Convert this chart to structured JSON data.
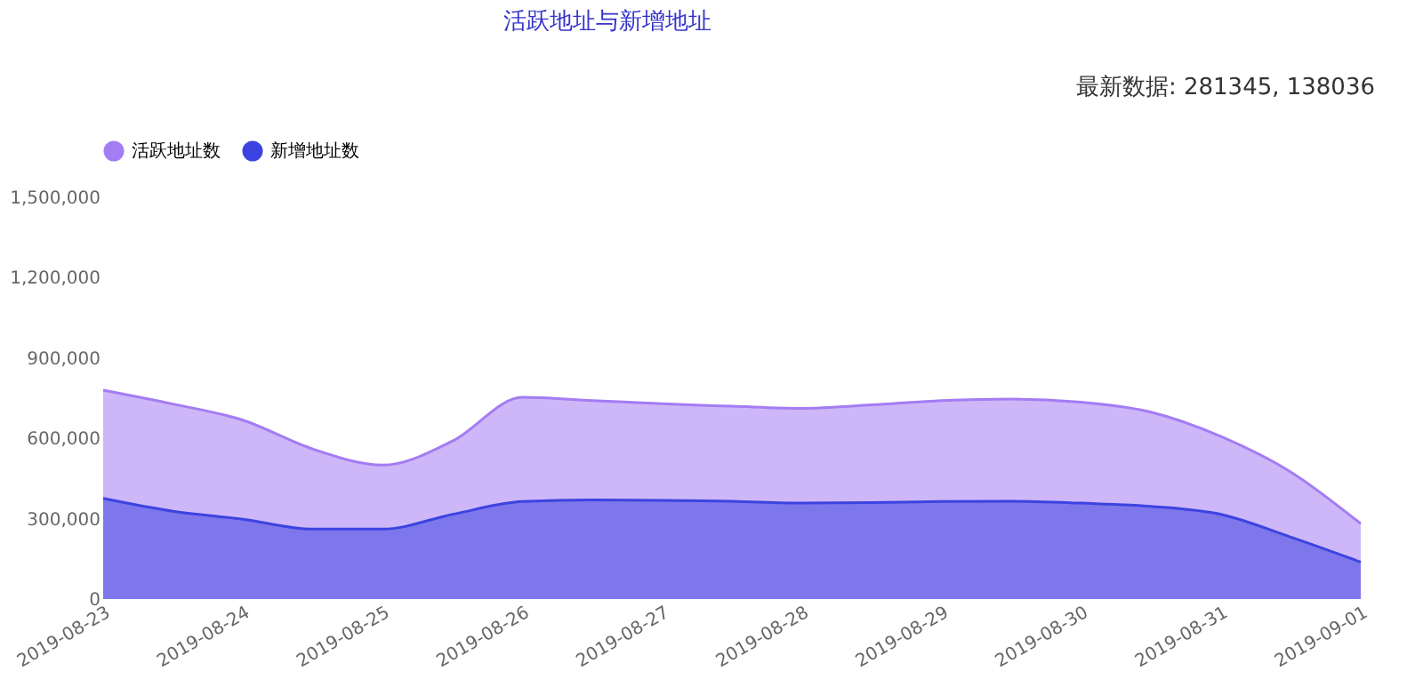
{
  "chart_data": {
    "type": "area",
    "title": "活跃地址与新增地址",
    "annotations": [
      "最新数据: 281345, 138036"
    ],
    "x": [
      "2019-08-23T00:00",
      "2019-08-23T12:00",
      "2019-08-24T00:00",
      "2019-08-24T12:00",
      "2019-08-25T00:00",
      "2019-08-25T12:00",
      "2019-08-26T00:00",
      "2019-08-26T12:00",
      "2019-08-27T00:00",
      "2019-08-27T12:00",
      "2019-08-28T00:00",
      "2019-08-28T12:00",
      "2019-08-29T00:00",
      "2019-08-29T12:00",
      "2019-08-30T00:00",
      "2019-08-30T12:00",
      "2019-08-31T00:00",
      "2019-08-31T12:00",
      "2019-09-01T00:00"
    ],
    "series": [
      {
        "name": "活跃地址数",
        "color": "#a47cf3",
        "values": [
          780000,
          728000,
          668000,
          560000,
          500000,
          590000,
          753000,
          741000,
          729000,
          720000,
          712000,
          725000,
          741000,
          747000,
          735000,
          698000,
          607000,
          474000,
          281345
        ]
      },
      {
        "name": "新增地址数",
        "color": "#3c43e0",
        "values": [
          376000,
          328000,
          298000,
          261000,
          261000,
          316000,
          364000,
          370000,
          368000,
          365000,
          358000,
          360000,
          364000,
          365000,
          358000,
          346000,
          316000,
          231000,
          138036
        ]
      }
    ],
    "xlim": [
      "2019-08-23",
      "2019-09-01"
    ],
    "xticks": [
      "2019-08-23",
      "2019-08-24",
      "2019-08-25",
      "2019-08-26",
      "2019-08-27",
      "2019-08-28",
      "2019-08-29",
      "2019-08-30",
      "2019-08-31",
      "2019-09-01"
    ],
    "ylim": [
      0,
      1500000
    ],
    "yticks": [
      0,
      {
        "value": 300000,
        "label": "300,000"
      },
      {
        "value": 600000,
        "label": "600,000"
      },
      {
        "value": 900000,
        "label": "900,000"
      },
      {
        "value": 1200000,
        "label": "1,200,000"
      },
      {
        "value": 1500000,
        "label": "1,500,000"
      }
    ],
    "grid": false,
    "legend": "top"
  }
}
